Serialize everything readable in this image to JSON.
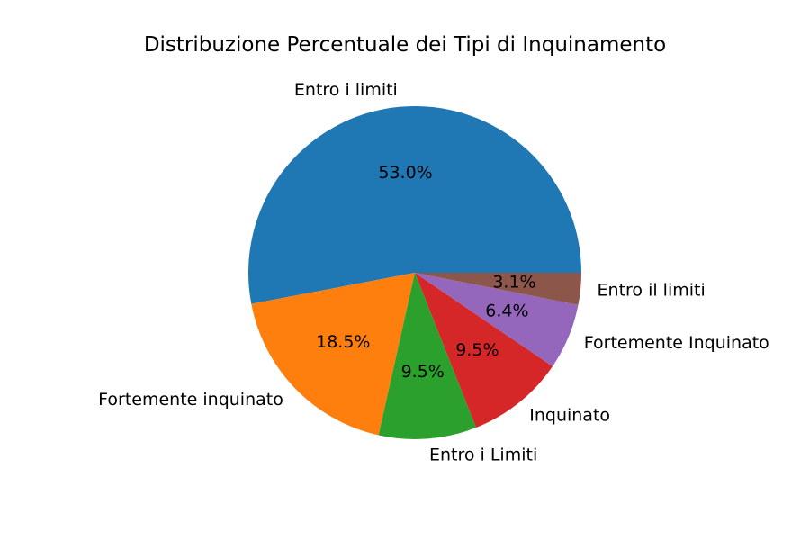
{
  "chart_data": {
    "type": "pie",
    "title": "Distribuzione Percentuale dei Tipi di Inquinamento",
    "categories": [
      "Entro i limiti",
      "Fortemente inquinato",
      "Entro i Limiti",
      "Inquinato",
      "Fortemente Inquinato",
      "Entro il limiti"
    ],
    "values": [
      53.0,
      18.5,
      9.5,
      9.5,
      6.4,
      3.1
    ],
    "percent_labels": [
      "53.0%",
      "18.5%",
      "9.5%",
      "9.5%",
      "6.4%",
      "3.1%"
    ],
    "colors": [
      "#1f77b4",
      "#ff7f0e",
      "#2ca02c",
      "#d62728",
      "#9467bd",
      "#8c564b"
    ],
    "start_angle_deg": 0,
    "direction": "counterclockwise",
    "legend": false
  }
}
